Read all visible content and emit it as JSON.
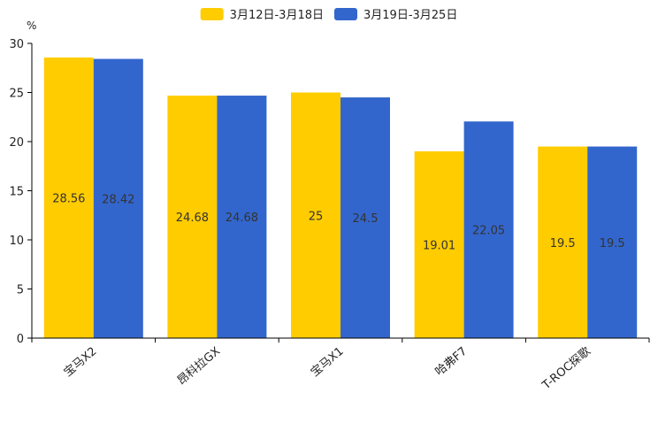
{
  "chart_data": {
    "type": "bar",
    "title": "",
    "xlabel": "",
    "ylabel": "%",
    "ylim": [
      0,
      30
    ],
    "yticks": [
      0,
      5,
      10,
      15,
      20,
      25,
      30
    ],
    "grid": false,
    "legend_position": "top-center",
    "categories": [
      "宝马X2",
      "昂科拉GX",
      "宝马X1",
      "哈弗F7",
      "T-ROC探歌"
    ],
    "series": [
      {
        "name": "3月12日-3月18日",
        "color": "#FFCC00",
        "values": [
          28.56,
          24.68,
          25,
          19.01,
          19.5
        ],
        "labels": [
          "28.56",
          "24.68",
          "25",
          "19.01",
          "19.5"
        ]
      },
      {
        "name": "3月19日-3月25日",
        "color": "#3366CC",
        "values": [
          28.42,
          24.68,
          24.5,
          22.05,
          19.5
        ],
        "labels": [
          "28.42",
          "24.68",
          "24.5",
          "22.05",
          "19.5"
        ]
      }
    ]
  }
}
